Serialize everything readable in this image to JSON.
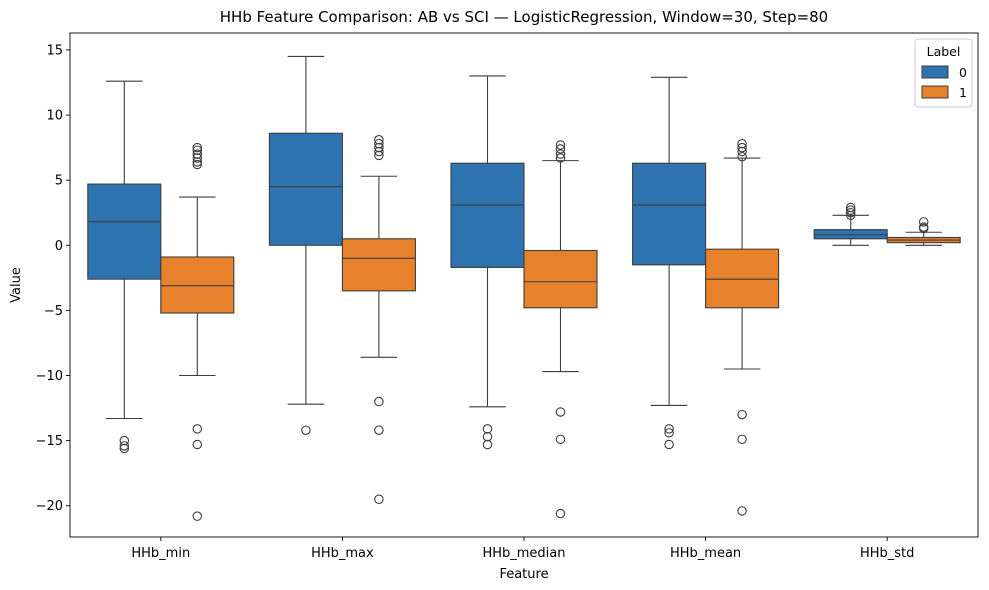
{
  "chart_data": {
    "type": "box",
    "title": "HHb Feature Comparison: AB vs SCI — LogisticRegression, Window=30, Step=80",
    "xlabel": "Feature",
    "ylabel": "Value",
    "ylim": [
      -22.4,
      16.3
    ],
    "yticks": [
      15,
      10,
      5,
      0,
      -5,
      -10,
      -15,
      -20
    ],
    "ytick_labels": [
      "15",
      "10",
      "5",
      "0",
      "−5",
      "−10",
      "−15",
      "−20"
    ],
    "categories": [
      "HHb_min",
      "HHb_max",
      "HHb_median",
      "HHb_mean",
      "HHb_std"
    ],
    "grid": false,
    "legend": {
      "title": "Label",
      "position": "top-right"
    },
    "colors": {
      "0": "#2e74b0",
      "1": "#e8812b",
      "line": "#3d3d3d"
    },
    "series": [
      {
        "name": "0",
        "boxes": [
          {
            "whisker_low": -13.3,
            "q1": -2.6,
            "median": 1.8,
            "q3": 4.7,
            "whisker_high": 12.6,
            "outliers": [
              -15.0,
              -15.4,
              -15.6
            ]
          },
          {
            "whisker_low": -12.2,
            "q1": 0.0,
            "median": 4.5,
            "q3": 8.6,
            "whisker_high": 14.5,
            "outliers": [
              -14.2
            ]
          },
          {
            "whisker_low": -12.4,
            "q1": -1.7,
            "median": 3.1,
            "q3": 6.3,
            "whisker_high": 13.0,
            "outliers": [
              -14.1,
              -14.7,
              -15.3
            ]
          },
          {
            "whisker_low": -12.3,
            "q1": -1.5,
            "median": 3.1,
            "q3": 6.3,
            "whisker_high": 12.9,
            "outliers": [
              -14.1,
              -14.4,
              -15.3
            ]
          },
          {
            "whisker_low": 0.0,
            "q1": 0.5,
            "median": 0.8,
            "q3": 1.2,
            "whisker_high": 2.3,
            "outliers": [
              2.3,
              2.5,
              2.7,
              2.9
            ]
          }
        ]
      },
      {
        "name": "1",
        "boxes": [
          {
            "whisker_low": -10.0,
            "q1": -5.2,
            "median": -3.1,
            "q3": -0.9,
            "whisker_high": 3.7,
            "outliers": [
              6.2,
              6.4,
              6.7,
              7.0,
              7.3,
              7.5,
              -14.1,
              -15.3,
              -20.8
            ]
          },
          {
            "whisker_low": -8.6,
            "q1": -3.5,
            "median": -1.0,
            "q3": 0.5,
            "whisker_high": 5.3,
            "outliers": [
              6.9,
              7.2,
              7.5,
              7.8,
              8.1,
              -12.0,
              -14.2,
              -19.5
            ]
          },
          {
            "whisker_low": -9.7,
            "q1": -4.8,
            "median": -2.8,
            "q3": -0.4,
            "whisker_high": 6.5,
            "outliers": [
              6.7,
              7.0,
              7.4,
              7.7,
              -12.8,
              -14.9,
              -20.6
            ]
          },
          {
            "whisker_low": -9.5,
            "q1": -4.8,
            "median": -2.6,
            "q3": -0.3,
            "whisker_high": 6.7,
            "outliers": [
              6.8,
              7.2,
              7.5,
              7.8,
              -13.0,
              -14.9,
              -20.4
            ]
          },
          {
            "whisker_low": 0.0,
            "q1": 0.2,
            "median": 0.4,
            "q3": 0.6,
            "whisker_high": 1.0,
            "outliers": [
              1.3,
              1.4,
              1.8
            ]
          }
        ]
      }
    ]
  }
}
